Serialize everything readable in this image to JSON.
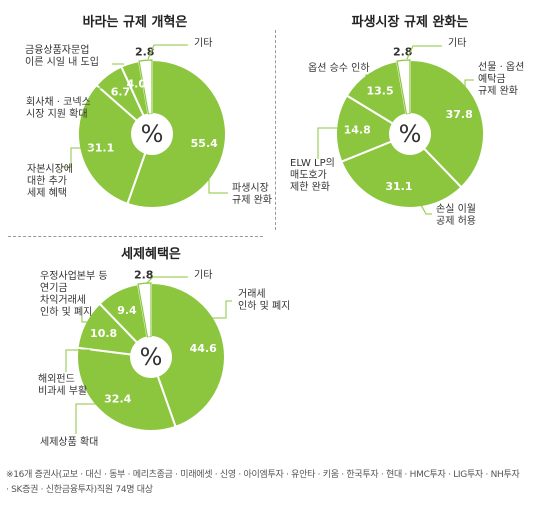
{
  "chart_data": [
    {
      "type": "pie",
      "title": "바라는 규제 개혁은",
      "center_label": "%",
      "colors": {
        "slice": "#8cc63f",
        "other": "#ffffff",
        "stroke": "#ffffff",
        "leader": "#8cc63f",
        "center": "#ffffff"
      },
      "slices": [
        {
          "value": 55.4,
          "value_label": "55.4",
          "label": [
            "파생시장",
            "규제 완화"
          ]
        },
        {
          "value": 31.1,
          "value_label": "31.1",
          "label": [
            "자본시장에",
            "대한 추가",
            "세제 혜택"
          ]
        },
        {
          "value": 6.7,
          "value_label": "6.7",
          "label": [
            "회사채 · 코넥스",
            "시장 지원 확대"
          ]
        },
        {
          "value": 4.0,
          "value_label": "4.0",
          "label": [
            "금융상품자문업",
            "이른 시일 내 도입"
          ]
        },
        {
          "value": 2.8,
          "value_label": "2.8",
          "label": [
            "기타"
          ],
          "other": true
        }
      ]
    },
    {
      "type": "pie",
      "title": "파생시장 규제 완화는",
      "center_label": "%",
      "colors": {
        "slice": "#8cc63f",
        "other": "#ffffff",
        "stroke": "#ffffff",
        "leader": "#8cc63f",
        "center": "#ffffff"
      },
      "slices": [
        {
          "value": 37.8,
          "value_label": "37.8",
          "label": [
            "선물 · 옵션",
            "예탁금",
            "규제 완화"
          ]
        },
        {
          "value": 31.1,
          "value_label": "31.1",
          "label": [
            "손실 이월",
            "공제 허용"
          ]
        },
        {
          "value": 14.8,
          "value_label": "14.8",
          "label": [
            "ELW LP의",
            "매도호가",
            "제한 완화"
          ]
        },
        {
          "value": 13.5,
          "value_label": "13.5",
          "label": [
            "옵션 승수 인하"
          ]
        },
        {
          "value": 2.8,
          "value_label": "2.8",
          "label": [
            "기타"
          ],
          "other": true
        }
      ]
    },
    {
      "type": "pie",
      "title": "세제혜택은",
      "center_label": "%",
      "colors": {
        "slice": "#8cc63f",
        "other": "#ffffff",
        "stroke": "#ffffff",
        "leader": "#8cc63f",
        "center": "#ffffff"
      },
      "slices": [
        {
          "value": 44.6,
          "value_label": "44.6",
          "label": [
            "거래세",
            "인하 및 폐지"
          ]
        },
        {
          "value": 32.4,
          "value_label": "32.4",
          "label": [
            "세제상품 확대"
          ]
        },
        {
          "value": 10.8,
          "value_label": "10.8",
          "label": [
            "해외펀드",
            "비과세 부활"
          ]
        },
        {
          "value": 9.4,
          "value_label": "9.4",
          "label": [
            "우정사업본부 등",
            "연기금",
            "차익거래세",
            "인하 및 폐지"
          ]
        },
        {
          "value": 2.8,
          "value_label": "2.8",
          "label": [
            "기타"
          ],
          "other": true
        }
      ]
    }
  ],
  "footnote": [
    "※16개 증권사(교보 · 대신 · 동부 · 메리츠종금 · 미래에셋 · 신영 · 아이엠투자 · 유안타 · 키움 · 한국투자 · 현대 · HMC투자 · LIG투자 · NH투자",
    " · SK증권 · 신한금융투자)직원 74명 대상"
  ]
}
